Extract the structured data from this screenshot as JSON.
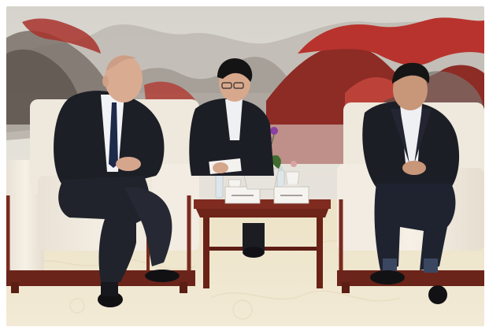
{
  "photo": {
    "subject": "formal meeting",
    "nameplates": [
      "",
      ""
    ]
  },
  "palette": {
    "wall": "#d9d5cf",
    "mountain_red": "#b8332d",
    "mountain_dark": "#6a6560",
    "sofa": "#efe7dc",
    "wood": "#7a2a1e",
    "carpet": "#efe6cf",
    "suit": "#1d1f26"
  }
}
